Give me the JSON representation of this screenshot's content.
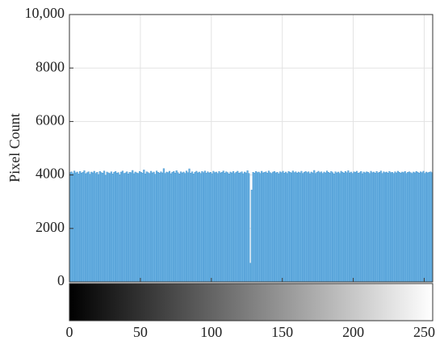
{
  "chart_data": {
    "type": "histogram",
    "ylabel": "Pixel Count",
    "color": "#6db3e3",
    "edgecolor": "#3d8fcc",
    "grid": true,
    "xlim": [
      0,
      256
    ],
    "ylim": [
      0,
      10000
    ],
    "xticks": [
      0,
      50,
      100,
      150,
      200,
      250
    ],
    "yticks": [
      0,
      2000,
      4000,
      6000,
      8000,
      {
        "value": 10000,
        "label": "10,000"
      }
    ],
    "bins": [
      0,
      1,
      2,
      3,
      4,
      5,
      6,
      7,
      8,
      9,
      10,
      11,
      12,
      13,
      14,
      15,
      16,
      17,
      18,
      19,
      20,
      21,
      22,
      23,
      24,
      25,
      26,
      27,
      28,
      29,
      30,
      31,
      32,
      33,
      34,
      35,
      36,
      37,
      38,
      39,
      40,
      41,
      42,
      43,
      44,
      45,
      46,
      47,
      48,
      49,
      50,
      51,
      52,
      53,
      54,
      55,
      56,
      57,
      58,
      59,
      60,
      61,
      62,
      63,
      64,
      65,
      66,
      67,
      68,
      69,
      70,
      71,
      72,
      73,
      74,
      75,
      76,
      77,
      78,
      79,
      80,
      81,
      82,
      83,
      84,
      85,
      86,
      87,
      88,
      89,
      90,
      91,
      92,
      93,
      94,
      95,
      96,
      97,
      98,
      99,
      100,
      101,
      102,
      103,
      104,
      105,
      106,
      107,
      108,
      109,
      110,
      111,
      112,
      113,
      114,
      115,
      116,
      117,
      118,
      119,
      120,
      121,
      122,
      123,
      124,
      125,
      126,
      127,
      128,
      129,
      130,
      131,
      132,
      133,
      134,
      135,
      136,
      137,
      138,
      139,
      140,
      141,
      142,
      143,
      144,
      145,
      146,
      147,
      148,
      149,
      150,
      151,
      152,
      153,
      154,
      155,
      156,
      157,
      158,
      159,
      160,
      161,
      162,
      163,
      164,
      165,
      166,
      167,
      168,
      169,
      170,
      171,
      172,
      173,
      174,
      175,
      176,
      177,
      178,
      179,
      180,
      181,
      182,
      183,
      184,
      185,
      186,
      187,
      188,
      189,
      190,
      191,
      192,
      193,
      194,
      195,
      196,
      197,
      198,
      199,
      200,
      201,
      202,
      203,
      204,
      205,
      206,
      207,
      208,
      209,
      210,
      211,
      212,
      213,
      214,
      215,
      216,
      217,
      218,
      219,
      220,
      221,
      222,
      223,
      224,
      225,
      226,
      227,
      228,
      229,
      230,
      231,
      232,
      233,
      234,
      235,
      236,
      237,
      238,
      239,
      240,
      241,
      242,
      243,
      244,
      245,
      246,
      247,
      248,
      249,
      250,
      251,
      252,
      253,
      254,
      255,
      256
    ],
    "values": [
      4090,
      4120,
      4060,
      4150,
      4080,
      4110,
      4040,
      4130,
      4070,
      4100,
      4160,
      4050,
      4090,
      4120,
      4030,
      4110,
      4080,
      4140,
      4060,
      4100,
      4020,
      4130,
      4090,
      4070,
      4150,
      3990,
      4110,
      4080,
      4060,
      4120,
      4040,
      4100,
      4130,
      4070,
      4090,
      4010,
      4110,
      4150,
      4060,
      4080,
      4120,
      4040,
      4100,
      4090,
      4170,
      4050,
      4110,
      4080,
      4060,
      4130,
      4100,
      4070,
      4190,
      4040,
      4120,
      4090,
      4060,
      4140,
      4080,
      4110,
      4030,
      4150,
      4100,
      4070,
      4120,
      4080,
      4240,
      4060,
      4110,
      4090,
      4140,
      4050,
      4100,
      4130,
      4070,
      4160,
      4090,
      4040,
      4120,
      4080,
      4110,
      4060,
      4150,
      4090,
      4230,
      4070,
      4120,
      4040,
      4100,
      4140,
      4080,
      4110,
      4060,
      4130,
      4090,
      4150,
      4070,
      4120,
      4080,
      4100,
      4050,
      4140,
      4090,
      4110,
      4060,
      4130,
      4080,
      4100,
      4150,
      4070,
      4120,
      4090,
      4040,
      4110,
      4080,
      4130,
      4060,
      4100,
      4140,
      4070,
      4090,
      4120,
      4050,
      4110,
      4080,
      4160,
      4060,
      700,
      3440,
      4100,
      4070,
      4130,
      4090,
      4110,
      4060,
      4140,
      4080,
      4100,
      4120,
      4070,
      4150,
      4090,
      4060,
      4110,
      4130,
      4080,
      4100,
      4050,
      4120,
      4090,
      4140,
      4070,
      4110,
      4060,
      4130,
      4100,
      4080,
      4150,
      4090,
      4120,
      4070,
      4110,
      4080,
      4140,
      4060,
      4100,
      4130,
      4090,
      4120,
      4050,
      4110,
      4080,
      4170,
      4060,
      4100,
      4140,
      4090,
      4120,
      4060,
      4110,
      4080,
      4150,
      4100,
      4070,
      4130,
      4090,
      4040,
      4120,
      4080,
      4110,
      4060,
      4140,
      4100,
      4070,
      4130,
      4090,
      4160,
      4080,
      4110,
      4060,
      4120,
      4100,
      4140,
      4070,
      4090,
      4130,
      4050,
      4110,
      4080,
      4120,
      4100,
      4060,
      4140,
      4090,
      4110,
      4070,
      4130,
      4080,
      4100,
      4150,
      4060,
      4120,
      4090,
      4110,
      4070,
      4130,
      4090,
      4100,
      4060,
      4120,
      4080,
      4140,
      4100,
      4070,
      4110,
      4090,
      4130,
      4060,
      4100,
      4120,
      4090,
      4060,
      4110,
      4080,
      4130,
      4100,
      4070,
      4120,
      4090,
      4140,
      4060,
      4110,
      4080,
      4100,
      4120,
      4090
    ]
  }
}
